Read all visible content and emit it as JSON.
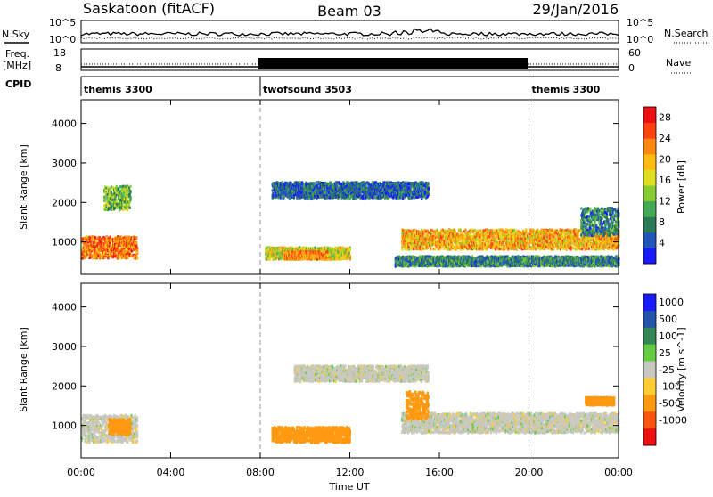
{
  "header": {
    "station": "Saskatoon (fitACF)",
    "beam": "Beam 03",
    "date": "29/Jan/2016"
  },
  "strip_panels": {
    "nsky": {
      "label": "N.Sky",
      "ticks": [
        "10^5",
        "10^0"
      ]
    },
    "nsearch": {
      "label": "N.Search",
      "ticks": [
        "10^5",
        "10^0"
      ]
    },
    "freq": {
      "label_line1": "Freq.",
      "label_line2": "[MHz]",
      "ticks": [
        "18",
        "8"
      ]
    },
    "nave": {
      "label": "Nave",
      "ticks": [
        "60",
        "0"
      ]
    },
    "cpid": {
      "label": "CPID",
      "segments": [
        {
          "name": "themis 3300",
          "start_hour": 0,
          "end_hour": 8
        },
        {
          "name": "twofsound 3503",
          "start_hour": 8,
          "end_hour": 20
        },
        {
          "name": "themis 3300",
          "start_hour": 20,
          "end_hour": 24
        }
      ]
    }
  },
  "chart_data": [
    {
      "type": "heatmap",
      "panel": "power",
      "ylabel": "Slant Range [km]",
      "yticks": [
        1000,
        2000,
        3000,
        4000
      ],
      "ylim": [
        180,
        4600
      ],
      "colorbar": {
        "label": "Power [dB]",
        "ticks": [
          4,
          8,
          12,
          16,
          20,
          24,
          28
        ],
        "range": [
          0,
          30
        ]
      },
      "regions": [
        {
          "t_start": 0.0,
          "t_end": 2.5,
          "r_center": 850,
          "r_width": 550,
          "value": 23
        },
        {
          "t_start": 1.0,
          "t_end": 2.2,
          "r_center": 2100,
          "r_width": 600,
          "value": 12
        },
        {
          "t_start": 8.2,
          "t_end": 12.0,
          "r_center": 700,
          "r_width": 300,
          "value": 16
        },
        {
          "t_start": 9.0,
          "t_end": 11.0,
          "r_center": 650,
          "r_width": 200,
          "value": 22
        },
        {
          "t_start": 8.5,
          "t_end": 15.5,
          "r_center": 2300,
          "r_width": 400,
          "value": 6
        },
        {
          "t_start": 14.3,
          "t_end": 24.0,
          "r_center": 1050,
          "r_width": 500,
          "value": 20
        },
        {
          "t_start": 14.0,
          "t_end": 24.0,
          "r_center": 500,
          "r_width": 250,
          "value": 8
        },
        {
          "t_start": 22.3,
          "t_end": 24.0,
          "r_center": 1500,
          "r_width": 700,
          "value": 8
        }
      ]
    },
    {
      "type": "heatmap",
      "panel": "velocity",
      "ylabel": "Slant Range [km]",
      "yticks": [
        1000,
        2000,
        3000,
        4000
      ],
      "ylim": [
        180,
        4600
      ],
      "colorbar": {
        "label": "Velocity [m s^-1]",
        "ticks": [
          "1000",
          "500",
          "100",
          "25",
          "-25",
          "-100",
          "-500",
          "-1000"
        ]
      },
      "regions": [
        {
          "t_start": 0.0,
          "t_end": 2.5,
          "r_center": 900,
          "r_width": 700,
          "value": 0
        },
        {
          "t_start": 1.2,
          "t_end": 2.2,
          "r_center": 950,
          "r_width": 400,
          "value": -150
        },
        {
          "t_start": 8.5,
          "t_end": 12.0,
          "r_center": 750,
          "r_width": 400,
          "value": -150
        },
        {
          "t_start": 9.5,
          "t_end": 15.5,
          "r_center": 2300,
          "r_width": 400,
          "value": 0
        },
        {
          "t_start": 14.3,
          "t_end": 24.0,
          "r_center": 1050,
          "r_width": 500,
          "value": 0
        },
        {
          "t_start": 14.5,
          "t_end": 15.5,
          "r_center": 1500,
          "r_width": 700,
          "value": -150
        },
        {
          "t_start": 22.5,
          "t_end": 23.8,
          "r_center": 1600,
          "r_width": 200,
          "value": -150
        }
      ]
    }
  ],
  "xaxis": {
    "label": "Time UT",
    "ticks": [
      "00:00",
      "04:00",
      "08:00",
      "12:00",
      "16:00",
      "20:00",
      "00:00"
    ],
    "range_hours": [
      0,
      24
    ]
  }
}
